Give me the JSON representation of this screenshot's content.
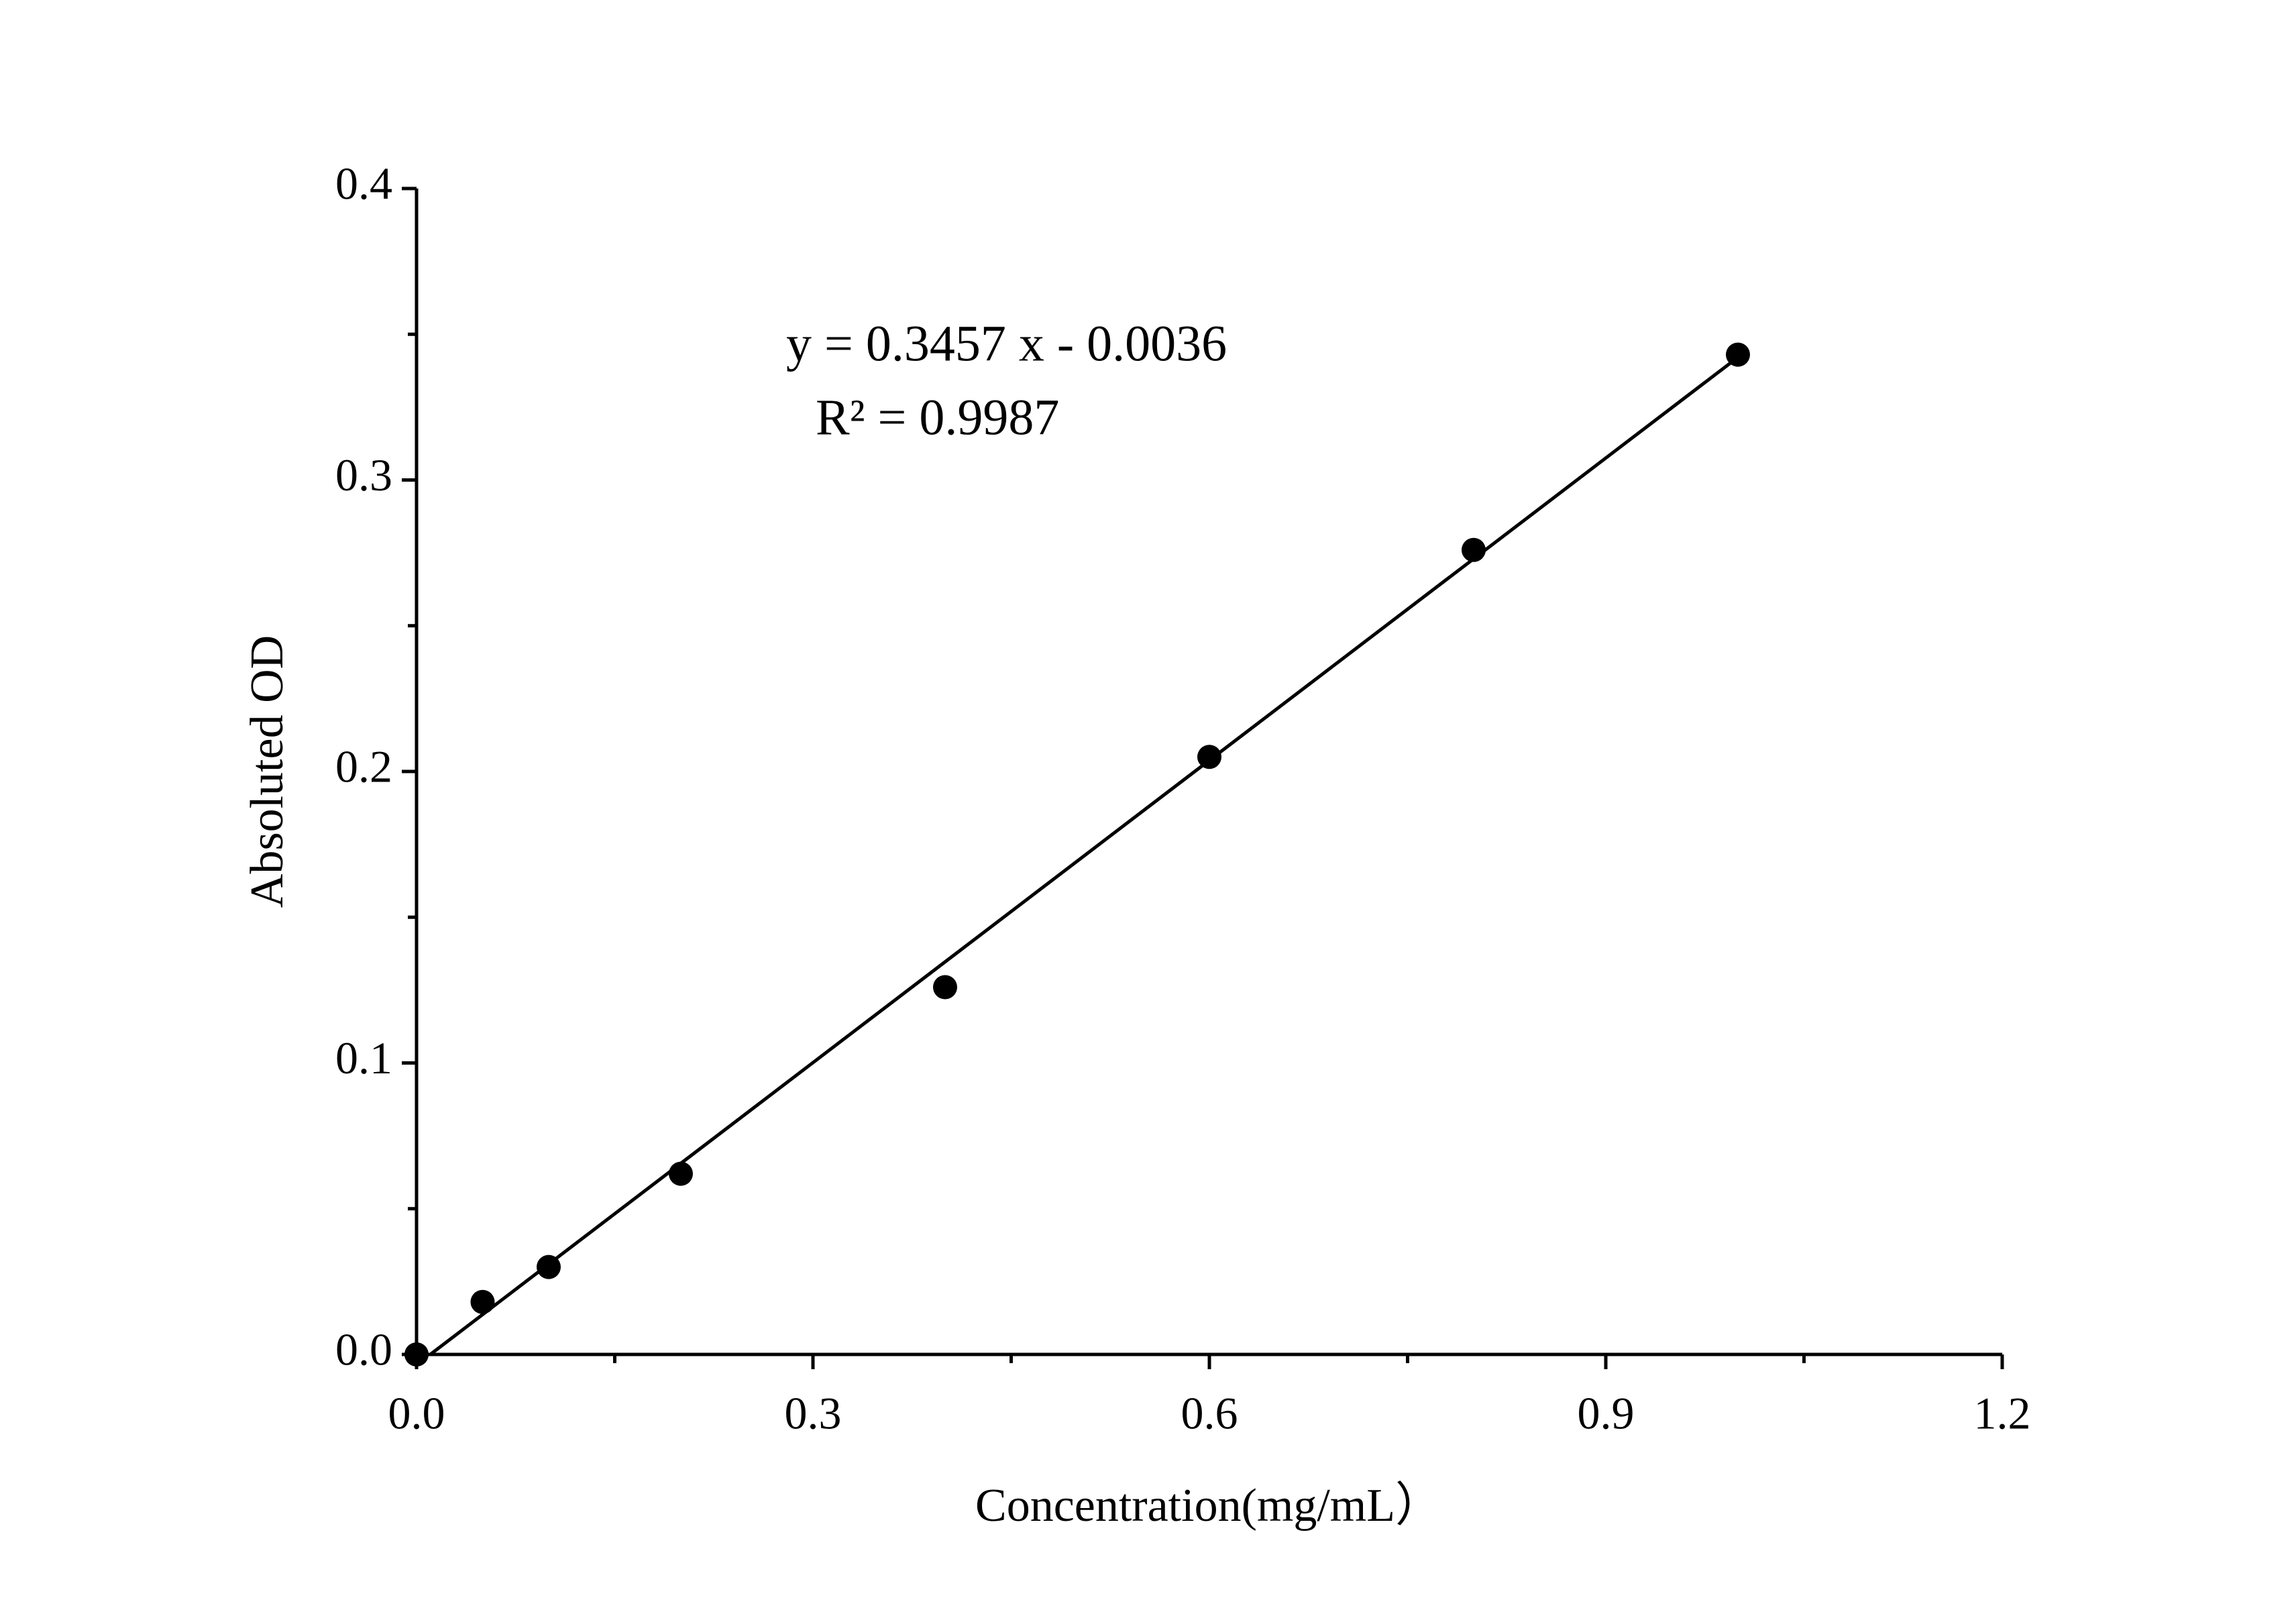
{
  "chart_data": {
    "type": "scatter",
    "x_label": "Concentration(mg/mL）",
    "y_label": "Absoluted OD",
    "annotations": [
      "y = 0.3457 x - 0.0036",
      "R² = 0.9987"
    ],
    "x": [
      0,
      0.05,
      0.1,
      0.2,
      0.4,
      0.6,
      0.8,
      1.0
    ],
    "values": [
      0,
      0.018,
      0.03,
      0.062,
      0.126,
      0.205,
      0.276,
      0.343
    ],
    "color": "#000000",
    "fit_line": {
      "x": [
        0.0104,
        1.0
      ],
      "y": [
        0,
        0.3421
      ],
      "color": "#000000"
    },
    "xlim": [
      0,
      1.2
    ],
    "xticks": [
      {
        "value": 0,
        "label": "0.0"
      },
      0.3,
      0.6,
      0.9,
      1.2
    ],
    "xminor": [
      0.15,
      0.45,
      0.75,
      1.05
    ],
    "ylim": [
      0,
      0.4
    ],
    "yticks": [
      {
        "value": 0,
        "label": "0.0"
      },
      0.1,
      0.2,
      0.3,
      0.4
    ],
    "yminor": [
      0.05,
      0.15,
      0.25,
      0.35
    ],
    "grid": false
  }
}
